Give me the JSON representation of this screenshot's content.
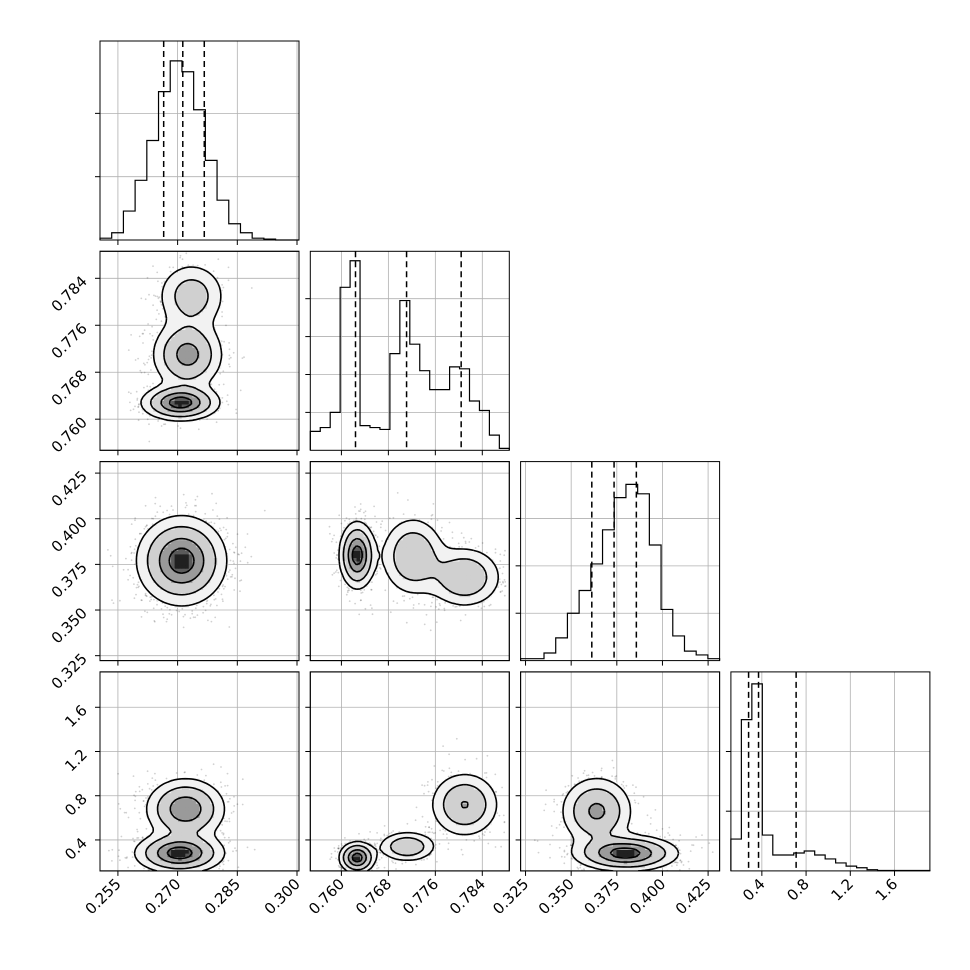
{
  "chart_data": {
    "type": "corner",
    "parameters": [
      {
        "range": [
          0.2505,
          0.3005
        ],
        "ticks": [
          0.255,
          0.27,
          0.285,
          0.3
        ],
        "tick_labels": [
          "0.255",
          "0.270",
          "0.285",
          "0.300"
        ],
        "quantiles": [
          0.2665,
          0.2713,
          0.2767
        ]
      },
      {
        "range": [
          0.7547,
          0.7886
        ],
        "ticks": [
          0.76,
          0.768,
          0.776,
          0.784
        ],
        "tick_labels": [
          "0.760",
          "0.768",
          "0.776",
          "0.784"
        ],
        "quantiles": [
          0.7624,
          0.7711,
          0.7804
        ]
      },
      {
        "range": [
          0.3223,
          0.4313
        ],
        "ticks": [
          0.325,
          0.35,
          0.375,
          0.4,
          0.425
        ],
        "tick_labels": [
          "0.325",
          "0.350",
          "0.375",
          "0.400",
          "0.425"
        ],
        "quantiles": [
          0.3613,
          0.3735,
          0.3857
        ]
      },
      {
        "range": [
          0.12,
          1.92
        ],
        "ticks": [
          0.4,
          0.8,
          1.2,
          1.6
        ],
        "tick_labels": [
          "0.4",
          "0.8",
          "1.2",
          "1.6"
        ],
        "quantiles": [
          0.28,
          0.37,
          0.71
        ]
      }
    ],
    "histograms": [
      {
        "values": [
          0.01,
          0.04,
          0.16,
          0.33,
          0.55,
          0.82,
          0.99,
          0.93,
          0.72,
          0.44,
          0.22,
          0.09,
          0.04,
          0.01,
          0.005,
          0,
          0
        ]
      },
      {
        "values": [
          0.1,
          0.12,
          0.2,
          0.86,
          1.0,
          0.13,
          0.12,
          0.11,
          0.51,
          0.79,
          0.56,
          0.42,
          0.32,
          0.32,
          0.44,
          0.43,
          0.26,
          0.21,
          0.08,
          0.01
        ]
      },
      {
        "values": [
          0.01,
          0.01,
          0.04,
          0.12,
          0.25,
          0.37,
          0.51,
          0.69,
          0.86,
          0.93,
          0.88,
          0.61,
          0.27,
          0.13,
          0.05,
          0.03,
          0.01
        ]
      },
      {
        "values": [
          0.08,
          0.38,
          0.47,
          0.09,
          0.04,
          0.04,
          0.045,
          0.05,
          0.04,
          0.03,
          0.02,
          0.012,
          0.008,
          0.003,
          0.001,
          0.001,
          0.001,
          0.001,
          0.001
        ]
      }
    ],
    "hist_ylims": [
      [
        0,
        1.1
      ],
      [
        0,
        1.05
      ],
      [
        0,
        1.05
      ],
      [
        0,
        0.5
      ]
    ],
    "hist_yticks": [
      [
        0.35,
        0.7
      ],
      [
        0.2,
        0.4,
        0.6,
        0.8
      ],
      [
        0.25,
        0.5,
        0.75
      ],
      [
        0.15,
        0.3
      ]
    ],
    "joint_pairs": [
      {
        "x": 0,
        "y": 1,
        "modes": [
          {
            "center": [
              0.2707,
              0.7628
            ],
            "sd": [
              0.0048,
              0.0015
            ],
            "weight": 0.46
          },
          {
            "center": [
              0.2725,
              0.771
            ],
            "sd": [
              0.0045,
              0.003
            ],
            "weight": 0.33
          },
          {
            "center": [
              0.2735,
              0.781
            ],
            "sd": [
              0.0045,
              0.003
            ],
            "weight": 0.21
          }
        ]
      },
      {
        "x": 0,
        "y": 2,
        "modes": [
          {
            "center": [
              0.271,
              0.377
            ],
            "sd": [
              0.0055,
              0.012
            ],
            "weight": 1.0
          }
        ]
      },
      {
        "x": 1,
        "y": 2,
        "modes": [
          {
            "center": [
              0.7627,
              0.38
            ],
            "sd": [
              0.0015,
              0.009
            ],
            "weight": 0.46
          },
          {
            "center": [
              0.7722,
              0.3795
            ],
            "sd": [
              0.0028,
              0.011
            ],
            "weight": 0.27
          },
          {
            "center": [
              0.781,
              0.368
            ],
            "sd": [
              0.0032,
              0.0085
            ],
            "weight": 0.27
          }
        ]
      },
      {
        "x": 0,
        "y": 3,
        "modes": [
          {
            "center": [
              0.2705,
              0.28
            ],
            "sd": [
              0.0055,
              0.09
            ],
            "weight": 0.55
          },
          {
            "center": [
              0.272,
              0.68
            ],
            "sd": [
              0.005,
              0.14
            ],
            "weight": 0.45
          }
        ]
      },
      {
        "x": 1,
        "y": 3,
        "modes": [
          {
            "center": [
              0.7627,
              0.24
            ],
            "sd": [
              0.0015,
              0.07
            ],
            "weight": 0.46
          },
          {
            "center": [
              0.7712,
              0.34
            ],
            "sd": [
              0.0025,
              0.07
            ],
            "weight": 0.26
          },
          {
            "center": [
              0.781,
              0.72
            ],
            "sd": [
              0.003,
              0.15
            ],
            "weight": 0.28
          }
        ]
      },
      {
        "x": 2,
        "y": 3,
        "modes": [
          {
            "center": [
              0.38,
              0.28
            ],
            "sd": [
              0.014,
              0.08
            ],
            "weight": 0.6
          },
          {
            "center": [
              0.364,
              0.66
            ],
            "sd": [
              0.01,
              0.16
            ],
            "weight": 0.4
          }
        ]
      }
    ],
    "contour_levels": [
      0.85,
      0.6,
      0.3,
      0.12
    ],
    "grid": true,
    "quantile_style": "dashed"
  }
}
